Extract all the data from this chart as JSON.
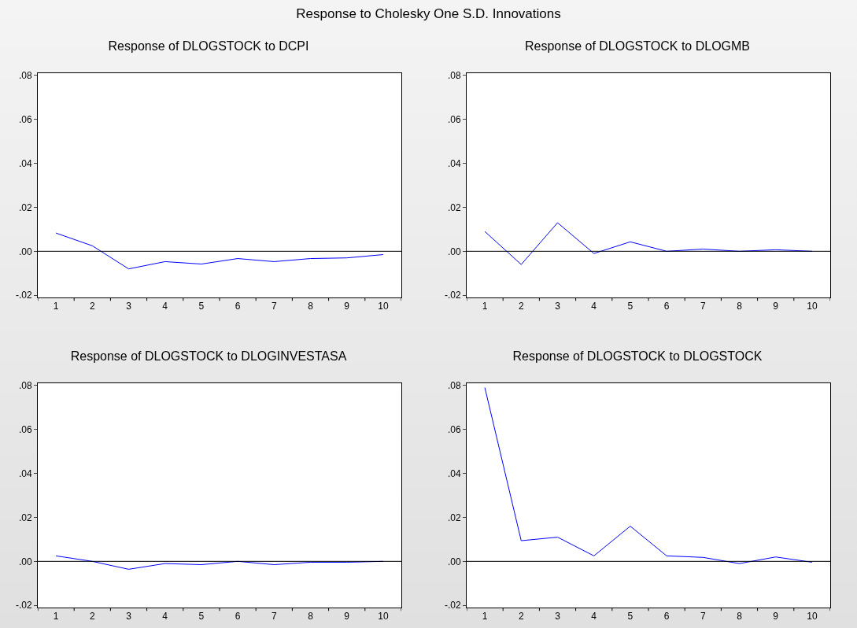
{
  "chart_data": [
    {
      "type": "line",
      "title": "Response of DLOGSTOCK to DCPI",
      "annotations": [
        "Response to Cholesky One S.D. Innovations"
      ],
      "categories": [
        "1",
        "2",
        "3",
        "4",
        "5",
        "6",
        "7",
        "8",
        "9",
        "10"
      ],
      "series": [
        {
          "color": "#0000ff",
          "values": [
            0.0083,
            0.0025,
            -0.008,
            -0.0047,
            -0.0058,
            -0.0033,
            -0.0047,
            -0.0033,
            -0.003,
            -0.0015
          ]
        }
      ],
      "ylim": [
        -0.021,
        0.081
      ],
      "yticks": [
        {
          "value": -0.02,
          "label": "-.02"
        },
        {
          "value": 0,
          "label": ".00"
        },
        {
          "value": 0.02,
          "label": ".02"
        },
        {
          "value": 0.04,
          "label": ".04"
        },
        {
          "value": 0.06,
          "label": ".06"
        },
        {
          "value": 0.08,
          "label": ".08"
        }
      ],
      "ref_lines": [
        {
          "axis": "y",
          "value": 0,
          "color": "#000000"
        }
      ],
      "grid": false,
      "marker": "none",
      "line_style": "solid"
    },
    {
      "type": "line",
      "title": "Response of DLOGSTOCK to DLOGMB",
      "categories": [
        "1",
        "2",
        "3",
        "4",
        "5",
        "6",
        "7",
        "8",
        "9",
        "10"
      ],
      "series": [
        {
          "color": "#0000ff",
          "values": [
            0.009,
            -0.006,
            0.013,
            -0.001,
            0.0043,
            0,
            0.001,
            0,
            0.0007,
            0
          ]
        }
      ],
      "ylim": [
        -0.021,
        0.081
      ],
      "yticks": [
        {
          "value": -0.02,
          "label": "-.02"
        },
        {
          "value": 0,
          "label": ".00"
        },
        {
          "value": 0.02,
          "label": ".02"
        },
        {
          "value": 0.04,
          "label": ".04"
        },
        {
          "value": 0.06,
          "label": ".06"
        },
        {
          "value": 0.08,
          "label": ".08"
        }
      ],
      "ref_lines": [
        {
          "axis": "y",
          "value": 0,
          "color": "#000000"
        }
      ],
      "grid": false,
      "marker": "none",
      "line_style": "solid"
    },
    {
      "type": "line",
      "title": "Response of DLOGSTOCK to DLOGINVESTASA",
      "categories": [
        "1",
        "2",
        "3",
        "4",
        "5",
        "6",
        "7",
        "8",
        "9",
        "10"
      ],
      "series": [
        {
          "color": "#0000ff",
          "values": [
            0.0025,
            0,
            -0.0036,
            -0.001,
            -0.0015,
            0,
            -0.0015,
            -0.0004,
            -0.0004,
            0
          ]
        }
      ],
      "ylim": [
        -0.021,
        0.081
      ],
      "yticks": [
        {
          "value": -0.02,
          "label": "-.02"
        },
        {
          "value": 0,
          "label": ".00"
        },
        {
          "value": 0.02,
          "label": ".02"
        },
        {
          "value": 0.04,
          "label": ".04"
        },
        {
          "value": 0.06,
          "label": ".06"
        },
        {
          "value": 0.08,
          "label": ".08"
        }
      ],
      "ref_lines": [
        {
          "axis": "y",
          "value": 0,
          "color": "#000000"
        }
      ],
      "grid": false,
      "marker": "none",
      "line_style": "solid"
    },
    {
      "type": "line",
      "title": "Response of DLOGSTOCK to DLOGSTOCK",
      "categories": [
        "1",
        "2",
        "3",
        "4",
        "5",
        "6",
        "7",
        "8",
        "9",
        "10"
      ],
      "series": [
        {
          "color": "#0000ff",
          "values": [
            0.079,
            0.0094,
            0.011,
            0.0025,
            0.016,
            0.0025,
            0.0018,
            -0.001,
            0.002,
            -0.0004
          ]
        }
      ],
      "ylim": [
        -0.021,
        0.081
      ],
      "yticks": [
        {
          "value": -0.02,
          "label": "-.02"
        },
        {
          "value": 0,
          "label": ".00"
        },
        {
          "value": 0.02,
          "label": ".02"
        },
        {
          "value": 0.04,
          "label": ".04"
        },
        {
          "value": 0.06,
          "label": ".06"
        },
        {
          "value": 0.08,
          "label": ".08"
        }
      ],
      "ref_lines": [
        {
          "axis": "y",
          "value": 0,
          "color": "#000000"
        }
      ],
      "grid": false,
      "marker": "none",
      "line_style": "solid"
    }
  ]
}
